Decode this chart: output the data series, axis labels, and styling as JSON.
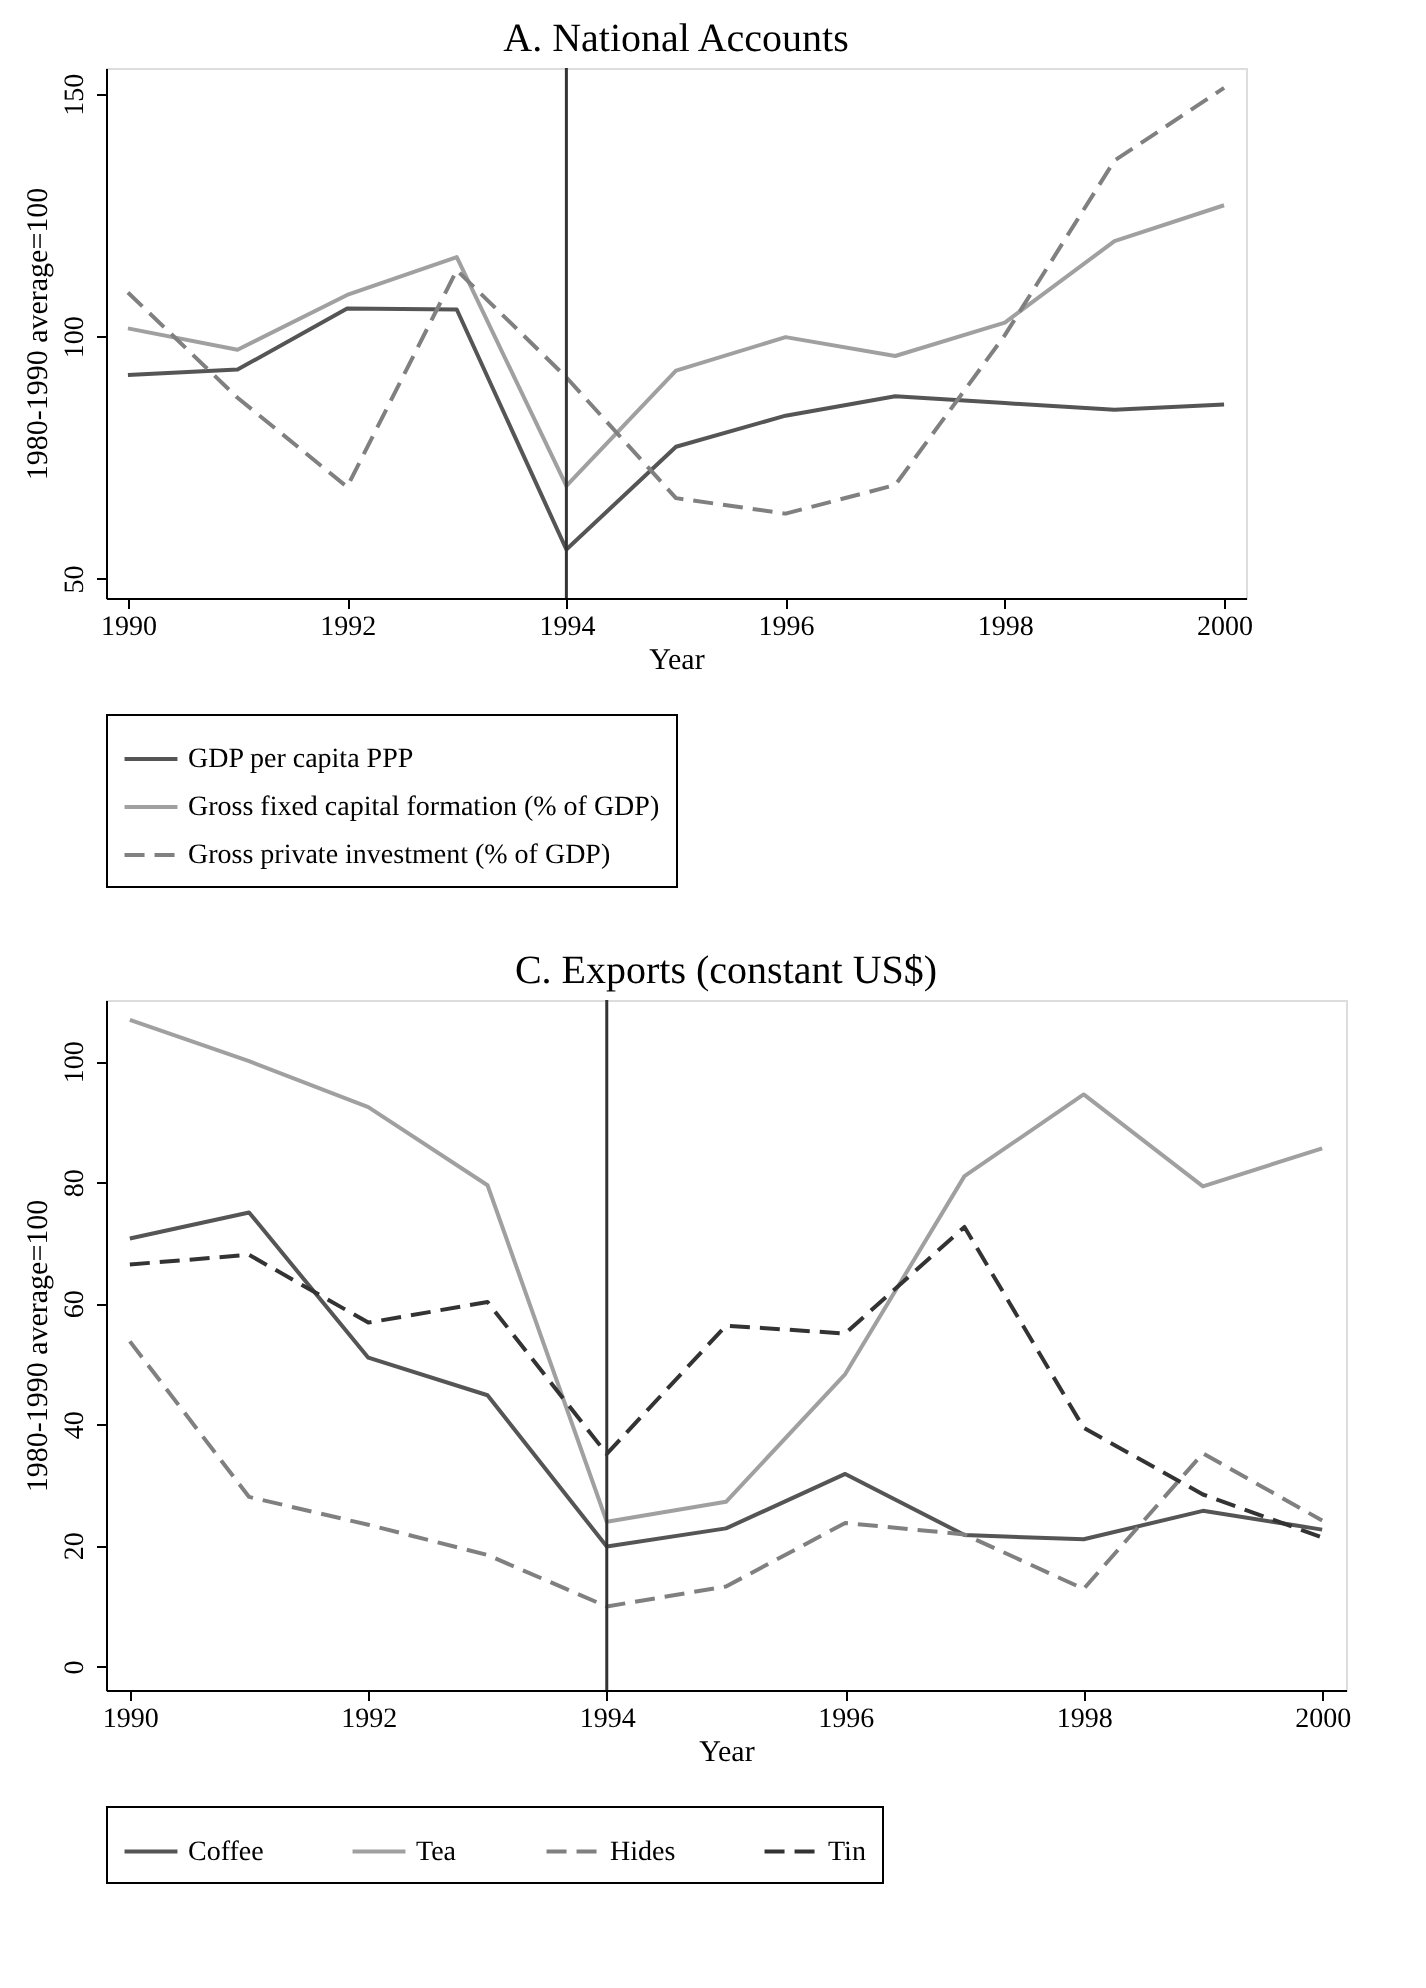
{
  "chart_data": [
    {
      "type": "line",
      "title": "A. National Accounts",
      "xlabel": "Year",
      "ylabel": "1980-1990 average=100",
      "x": [
        1990,
        1991,
        1992,
        1993,
        1994,
        1995,
        1996,
        1997,
        1998,
        1999,
        2000
      ],
      "xlim": [
        1989.8,
        2000.2
      ],
      "xticks": [
        1990,
        1992,
        1994,
        1996,
        1998,
        2000
      ],
      "ylim": [
        46,
        155.3
      ],
      "yticks": [
        50,
        100,
        150
      ],
      "grid": false,
      "legend": "bottom",
      "ref_lines": [
        {
          "axis": "x",
          "value": 1994,
          "color": "#333333"
        }
      ],
      "series": [
        {
          "name": "GDP per capita PPP",
          "color": "#555555",
          "line_style": "solid",
          "values": [
            92.0,
            93.1,
            105.7,
            105.5,
            56.0,
            77.2,
            83.6,
            87.6,
            86.2,
            84.8,
            85.9
          ]
        },
        {
          "name": "Gross fixed capital formation (% of GDP)",
          "color": "#a0a0a0",
          "line_style": "solid",
          "values": [
            101.6,
            97.2,
            108.5,
            116.3,
            69.1,
            92.9,
            99.8,
            95.9,
            102.8,
            119.6,
            127.0
          ]
        },
        {
          "name": "Gross private investment (% of GDP)",
          "color": "#808080",
          "line_style": "dashed",
          "values": [
            109.0,
            87.3,
            68.9,
            113.6,
            91.5,
            66.6,
            63.4,
            69.3,
            100.2,
            136.2,
            151.2
          ]
        }
      ]
    },
    {
      "type": "line",
      "title": "C. Exports (constant US$)",
      "xlabel": "Year",
      "ylabel": "1980-1990 average=100",
      "x": [
        1990,
        1991,
        1992,
        1993,
        1994,
        1995,
        1996,
        1997,
        1998,
        1999,
        2000
      ],
      "xlim": [
        1989.8,
        2000.2
      ],
      "xticks": [
        1990,
        1992,
        1994,
        1996,
        1998,
        2000
      ],
      "ylim": [
        -3.9,
        110.1
      ],
      "yticks": [
        0,
        20,
        40,
        60,
        80,
        100
      ],
      "grid": false,
      "legend": "bottom",
      "ref_lines": [
        {
          "axis": "x",
          "value": 1994,
          "color": "#333333"
        }
      ],
      "series": [
        {
          "name": "Coffee",
          "color": "#555555",
          "line_style": "solid",
          "values": [
            70.7,
            75.0,
            51.0,
            44.8,
            19.8,
            22.8,
            31.8,
            21.7,
            21.0,
            25.7,
            22.6
          ]
        },
        {
          "name": "Tea",
          "color": "#a0a0a0",
          "line_style": "solid",
          "values": [
            106.8,
            100.0,
            92.4,
            79.5,
            23.9,
            27.2,
            48.3,
            81.0,
            94.5,
            79.3,
            85.6
          ]
        },
        {
          "name": "Hides",
          "color": "#808080",
          "line_style": "dashed",
          "values": [
            53.7,
            28.0,
            23.4,
            18.4,
            9.9,
            13.2,
            23.7,
            21.8,
            12.8,
            35.2,
            24.1
          ]
        },
        {
          "name": "Tin",
          "color": "#333333",
          "line_style": "dashed",
          "values": [
            66.4,
            68.0,
            56.8,
            60.2,
            35.1,
            56.3,
            55.0,
            72.6,
            39.4,
            28.4,
            21.3
          ]
        }
      ]
    }
  ]
}
